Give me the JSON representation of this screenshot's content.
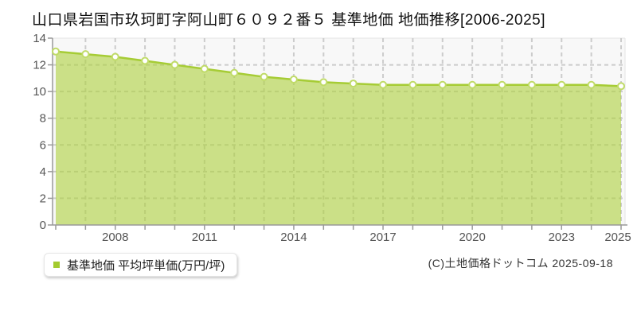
{
  "page": {
    "title": "山口県岩国市玖珂町字阿山町６０９２番５ 基準地価 地価推移[2006-2025]"
  },
  "chart_data": {
    "type": "area",
    "title": "山口県岩国市玖珂町字阿山町６０９２番５ 基準地価 地価推移[2006-2025]",
    "x": [
      2006,
      2007,
      2008,
      2009,
      2010,
      2011,
      2012,
      2013,
      2014,
      2015,
      2016,
      2017,
      2018,
      2019,
      2020,
      2021,
      2022,
      2023,
      2024,
      2025
    ],
    "series": [
      {
        "name": "基準地価 平均坪単価(万円/坪)",
        "values": [
          13.0,
          12.8,
          12.6,
          12.3,
          12.0,
          11.7,
          11.4,
          11.1,
          10.9,
          10.7,
          10.6,
          10.5,
          10.5,
          10.5,
          10.5,
          10.5,
          10.5,
          10.5,
          10.5,
          10.4
        ]
      }
    ],
    "xlabel": "",
    "ylabel": "",
    "ylim": [
      0,
      14
    ],
    "y_ticks": [
      0,
      2,
      4,
      6,
      8,
      10,
      12,
      14
    ],
    "x_tick_labels": [
      "2008",
      "2011",
      "2014",
      "2017",
      "2020",
      "2023",
      "2025"
    ],
    "grid": true,
    "legend_position": "bottom-left",
    "colors": {
      "area_fill": "rgba(173,208,60,0.60)",
      "line": "#a6cc35",
      "point_fill": "#ffffff",
      "point_stroke": "#c0db68",
      "grid": "#cccccc",
      "axis": "#999999",
      "plot_border": "#e3e3e3",
      "plot_bg": "#f8f8f8",
      "tick_label": "#555555"
    }
  },
  "legend": {
    "label": "基準地価 平均坪単価(万円/坪)",
    "marker_color": "#a3cb2f"
  },
  "footer": {
    "copyright": "(C)土地価格ドットコム 2025-09-18"
  }
}
